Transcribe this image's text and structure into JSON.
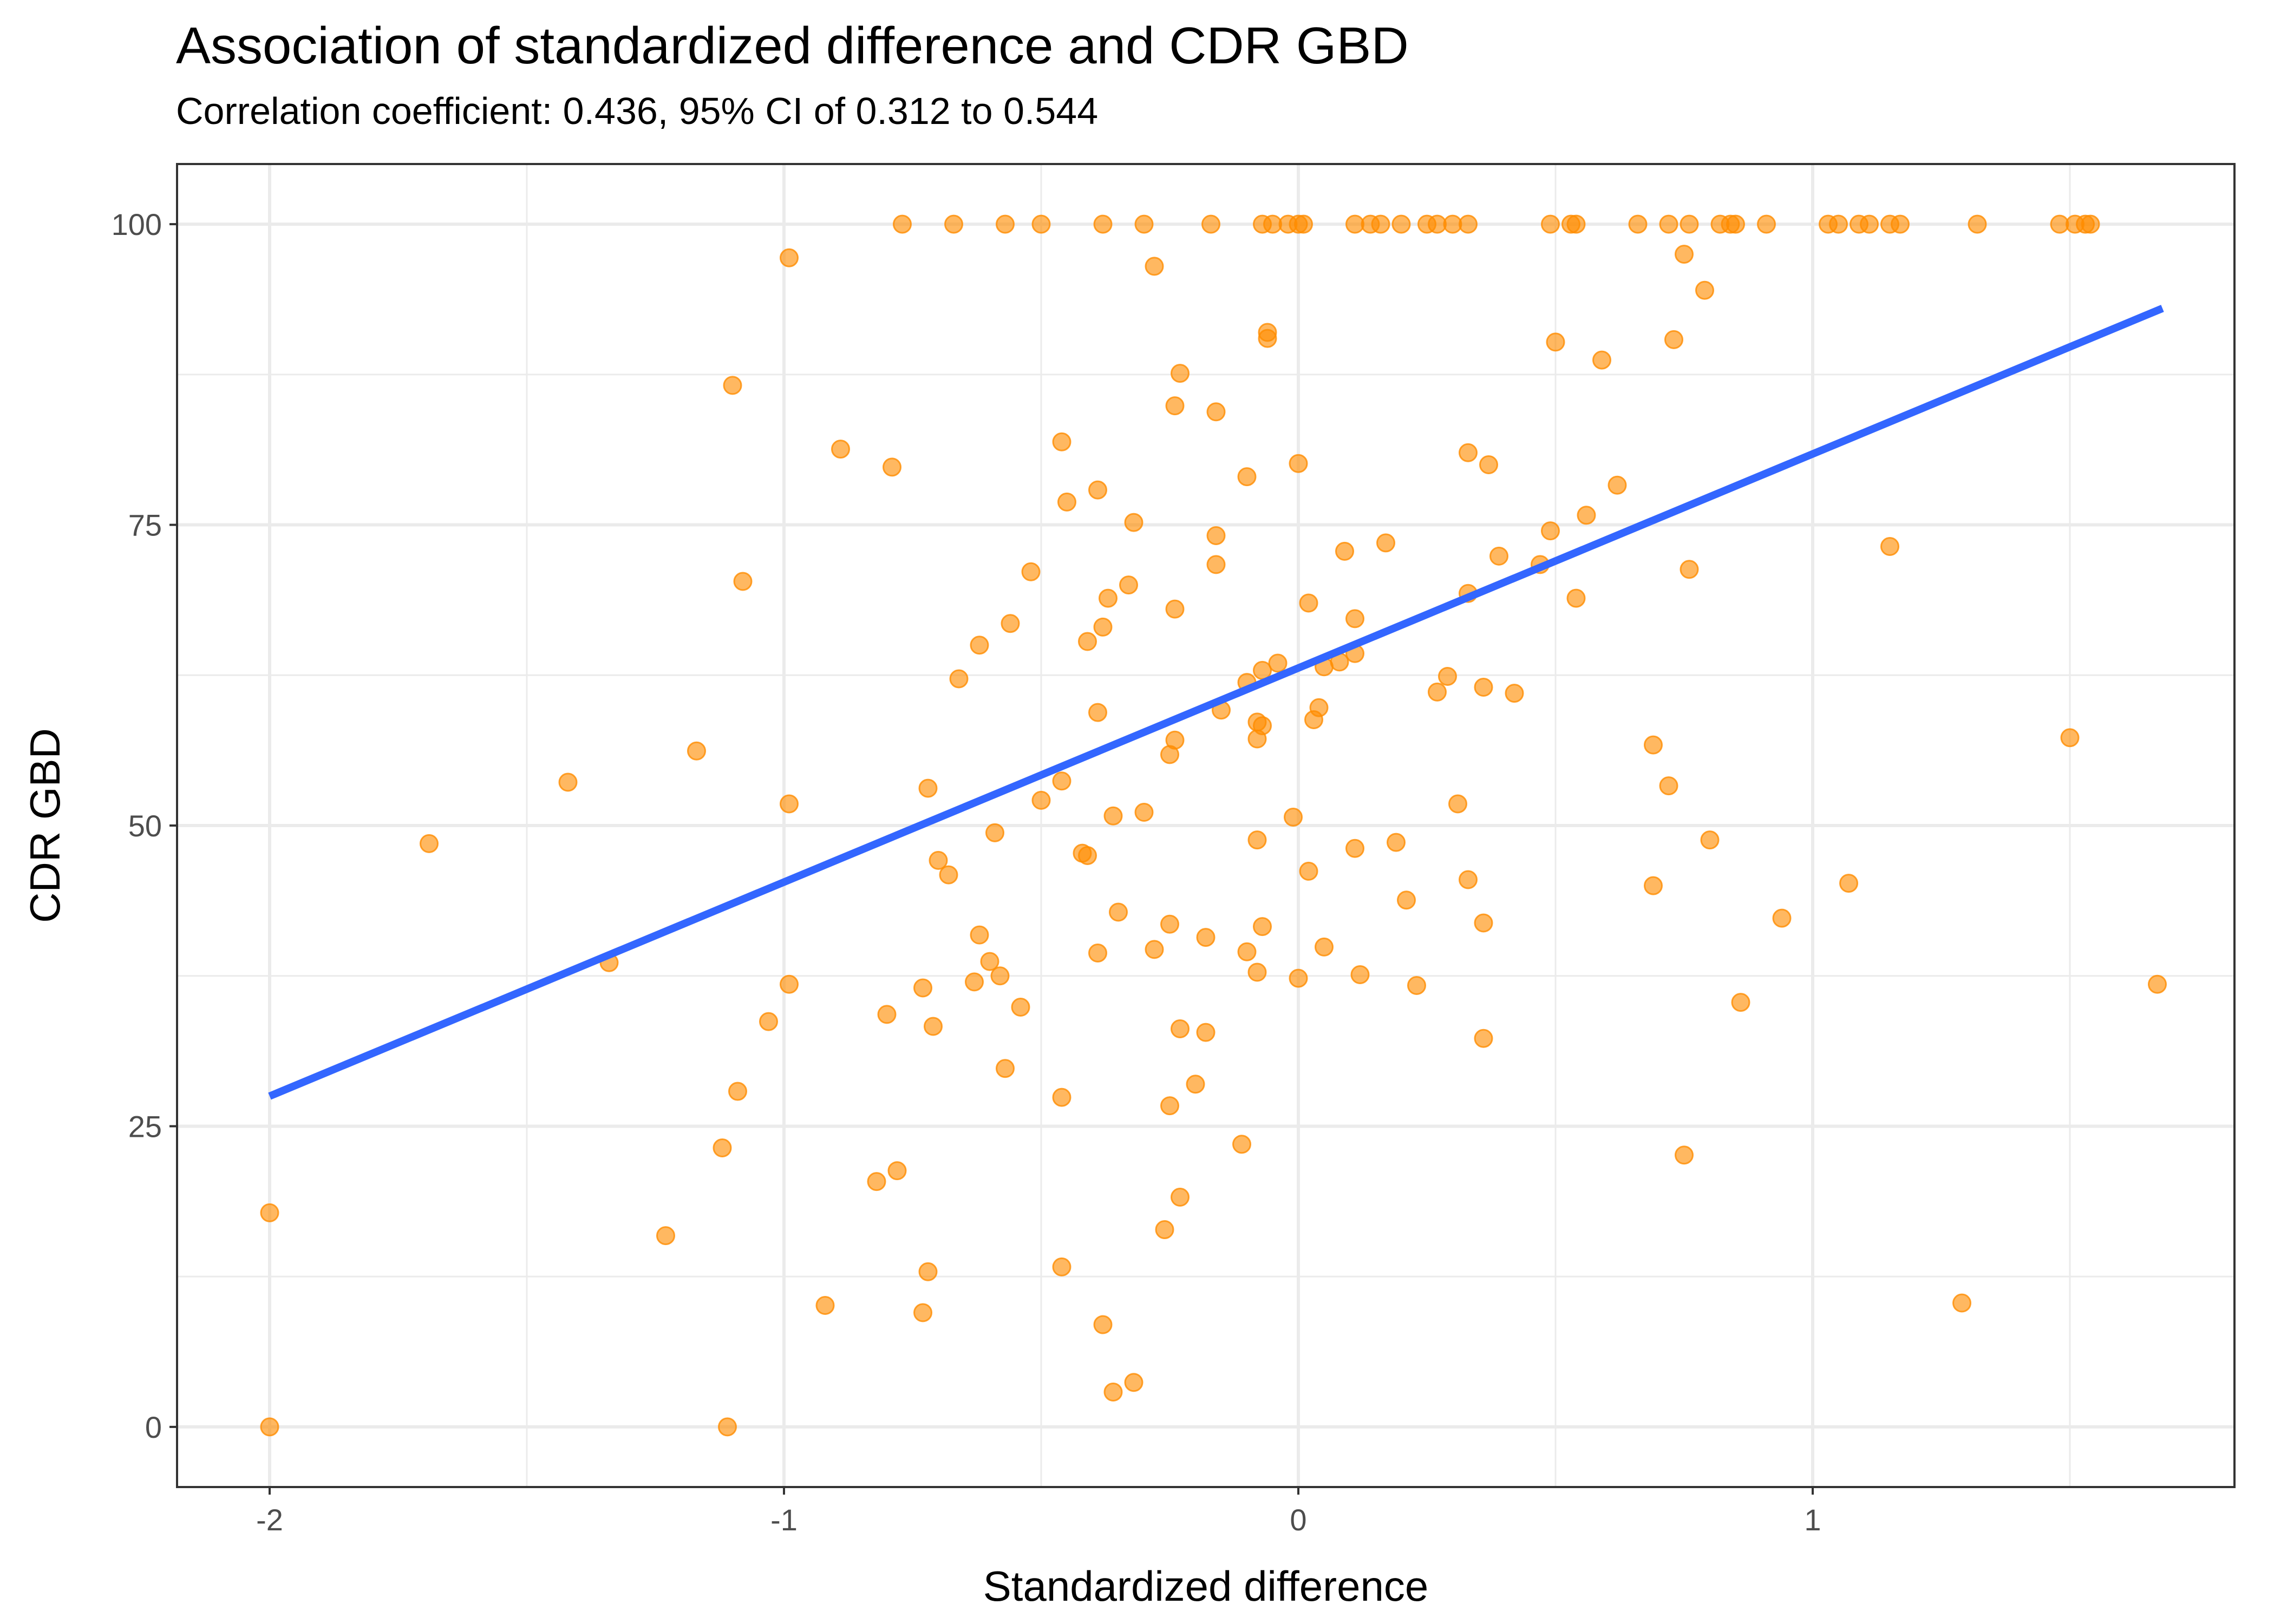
{
  "chart_data": {
    "type": "scatter",
    "title": "Association of standardized difference and CDR GBD",
    "subtitle": "Correlation coefficient: 0.436, 95% CI of 0.312 to 0.544",
    "xlabel": "Standardized difference",
    "ylabel": "CDR GBD",
    "xlim": [
      -2.18,
      1.82
    ],
    "ylim": [
      -5,
      105
    ],
    "x_ticks": [
      -2,
      -1,
      0,
      1
    ],
    "x_tick_labels": [
      "-2",
      "-1",
      "0",
      "1"
    ],
    "y_ticks": [
      0,
      25,
      50,
      75,
      100
    ],
    "y_tick_labels": [
      "0",
      "25",
      "50",
      "75",
      "100"
    ],
    "x_minor_ticks": [
      -1.5,
      -0.5,
      0.5,
      1.5
    ],
    "y_minor_ticks": [
      12.5,
      37.5,
      62.5,
      87.5
    ],
    "grid": true,
    "colors": {
      "points": "#FF8C00",
      "trend": "#3366FF",
      "grid": "#ebebeb",
      "border": "#333333"
    },
    "trend_line": {
      "x": [
        -2.0,
        1.68
      ],
      "y": [
        27.5,
        93.0
      ]
    },
    "points": [
      {
        "x": -0.77,
        "y": 100
      },
      {
        "x": -0.67,
        "y": 100
      },
      {
        "x": -0.57,
        "y": 100
      },
      {
        "x": -0.5,
        "y": 100
      },
      {
        "x": -0.38,
        "y": 100
      },
      {
        "x": -0.3,
        "y": 100
      },
      {
        "x": -0.17,
        "y": 100
      },
      {
        "x": -0.07,
        "y": 100
      },
      {
        "x": -0.05,
        "y": 100
      },
      {
        "x": -0.02,
        "y": 100
      },
      {
        "x": 0.0,
        "y": 100
      },
      {
        "x": 0.01,
        "y": 100
      },
      {
        "x": 0.11,
        "y": 100
      },
      {
        "x": 0.14,
        "y": 100
      },
      {
        "x": 0.16,
        "y": 100
      },
      {
        "x": 0.2,
        "y": 100
      },
      {
        "x": 0.25,
        "y": 100
      },
      {
        "x": 0.27,
        "y": 100
      },
      {
        "x": 0.3,
        "y": 100
      },
      {
        "x": 0.33,
        "y": 100
      },
      {
        "x": 0.49,
        "y": 100
      },
      {
        "x": 0.53,
        "y": 100
      },
      {
        "x": 0.54,
        "y": 100
      },
      {
        "x": 0.66,
        "y": 100
      },
      {
        "x": 0.72,
        "y": 100
      },
      {
        "x": 0.76,
        "y": 100
      },
      {
        "x": 0.82,
        "y": 100
      },
      {
        "x": 0.84,
        "y": 100
      },
      {
        "x": 0.85,
        "y": 100
      },
      {
        "x": 0.91,
        "y": 100
      },
      {
        "x": 1.03,
        "y": 100
      },
      {
        "x": 1.05,
        "y": 100
      },
      {
        "x": 1.09,
        "y": 100
      },
      {
        "x": 1.11,
        "y": 100
      },
      {
        "x": 1.15,
        "y": 100
      },
      {
        "x": 1.17,
        "y": 100
      },
      {
        "x": 1.32,
        "y": 100
      },
      {
        "x": 1.48,
        "y": 100
      },
      {
        "x": 1.51,
        "y": 100
      },
      {
        "x": 1.53,
        "y": 100
      },
      {
        "x": 1.54,
        "y": 100
      },
      {
        "x": -0.99,
        "y": 97.2
      },
      {
        "x": -0.28,
        "y": 96.5
      },
      {
        "x": 0.75,
        "y": 97.5
      },
      {
        "x": 0.79,
        "y": 94.5
      },
      {
        "x": -0.06,
        "y": 91.0
      },
      {
        "x": -0.06,
        "y": 90.5
      },
      {
        "x": 0.5,
        "y": 90.2
      },
      {
        "x": 0.73,
        "y": 90.4
      },
      {
        "x": 0.59,
        "y": 88.7
      },
      {
        "x": -0.23,
        "y": 87.6
      },
      {
        "x": -1.1,
        "y": 86.6
      },
      {
        "x": -0.24,
        "y": 84.9
      },
      {
        "x": -0.16,
        "y": 84.4
      },
      {
        "x": -0.46,
        "y": 81.9
      },
      {
        "x": -0.89,
        "y": 81.3
      },
      {
        "x": 0.33,
        "y": 81.0
      },
      {
        "x": -0.79,
        "y": 79.8
      },
      {
        "x": 0.0,
        "y": 80.1
      },
      {
        "x": 0.37,
        "y": 80.0
      },
      {
        "x": -0.1,
        "y": 79.0
      },
      {
        "x": 0.62,
        "y": 78.3
      },
      {
        "x": -0.39,
        "y": 77.9
      },
      {
        "x": -0.45,
        "y": 76.9
      },
      {
        "x": 0.56,
        "y": 75.8
      },
      {
        "x": -0.32,
        "y": 75.2
      },
      {
        "x": 0.49,
        "y": 74.5
      },
      {
        "x": -0.16,
        "y": 74.1
      },
      {
        "x": 0.17,
        "y": 73.5
      },
      {
        "x": 1.15,
        "y": 73.2
      },
      {
        "x": 0.09,
        "y": 72.8
      },
      {
        "x": 0.39,
        "y": 72.4
      },
      {
        "x": -0.16,
        "y": 71.7
      },
      {
        "x": 0.47,
        "y": 71.7
      },
      {
        "x": 0.76,
        "y": 71.3
      },
      {
        "x": -0.52,
        "y": 71.1
      },
      {
        "x": -1.08,
        "y": 70.3
      },
      {
        "x": -0.33,
        "y": 70.0
      },
      {
        "x": 0.33,
        "y": 69.3
      },
      {
        "x": 0.54,
        "y": 68.9
      },
      {
        "x": -0.37,
        "y": 68.9
      },
      {
        "x": 0.02,
        "y": 68.5
      },
      {
        "x": -0.24,
        "y": 68.0
      },
      {
        "x": 0.11,
        "y": 67.2
      },
      {
        "x": -0.56,
        "y": 66.8
      },
      {
        "x": -0.38,
        "y": 66.5
      },
      {
        "x": -0.41,
        "y": 65.3
      },
      {
        "x": -0.62,
        "y": 65.0
      },
      {
        "x": 0.11,
        "y": 64.3
      },
      {
        "x": 0.08,
        "y": 63.6
      },
      {
        "x": -0.04,
        "y": 63.5
      },
      {
        "x": -0.07,
        "y": 62.9
      },
      {
        "x": 0.05,
        "y": 63.2
      },
      {
        "x": 0.29,
        "y": 62.4
      },
      {
        "x": -0.66,
        "y": 62.2
      },
      {
        "x": -0.1,
        "y": 61.9
      },
      {
        "x": 0.36,
        "y": 61.5
      },
      {
        "x": 0.27,
        "y": 61.1
      },
      {
        "x": 0.42,
        "y": 61.0
      },
      {
        "x": 0.04,
        "y": 59.8
      },
      {
        "x": -0.15,
        "y": 59.6
      },
      {
        "x": -0.39,
        "y": 59.4
      },
      {
        "x": 0.03,
        "y": 58.8
      },
      {
        "x": -0.08,
        "y": 58.6
      },
      {
        "x": -0.07,
        "y": 58.3
      },
      {
        "x": 1.5,
        "y": 57.3
      },
      {
        "x": -0.08,
        "y": 57.2
      },
      {
        "x": -0.24,
        "y": 57.1
      },
      {
        "x": 0.69,
        "y": 56.7
      },
      {
        "x": -1.17,
        "y": 56.2
      },
      {
        "x": -0.25,
        "y": 55.9
      },
      {
        "x": -0.46,
        "y": 53.7
      },
      {
        "x": -1.42,
        "y": 53.6
      },
      {
        "x": 0.72,
        "y": 53.3
      },
      {
        "x": -0.72,
        "y": 53.1
      },
      {
        "x": -0.5,
        "y": 52.1
      },
      {
        "x": -0.99,
        "y": 51.8
      },
      {
        "x": 0.31,
        "y": 51.8
      },
      {
        "x": -0.3,
        "y": 51.1
      },
      {
        "x": -0.36,
        "y": 50.8
      },
      {
        "x": -0.01,
        "y": 50.7
      },
      {
        "x": -0.59,
        "y": 49.4
      },
      {
        "x": -0.08,
        "y": 48.8
      },
      {
        "x": 0.19,
        "y": 48.6
      },
      {
        "x": -1.69,
        "y": 48.5
      },
      {
        "x": 0.8,
        "y": 48.8
      },
      {
        "x": 0.11,
        "y": 48.1
      },
      {
        "x": -0.42,
        "y": 47.7
      },
      {
        "x": -0.41,
        "y": 47.5
      },
      {
        "x": -0.7,
        "y": 47.1
      },
      {
        "x": 0.02,
        "y": 46.2
      },
      {
        "x": -0.68,
        "y": 45.9
      },
      {
        "x": 0.33,
        "y": 45.5
      },
      {
        "x": 1.07,
        "y": 45.2
      },
      {
        "x": 0.69,
        "y": 45.0
      },
      {
        "x": 0.21,
        "y": 43.8
      },
      {
        "x": -0.35,
        "y": 42.8
      },
      {
        "x": 0.94,
        "y": 42.3
      },
      {
        "x": 0.36,
        "y": 41.9
      },
      {
        "x": -0.25,
        "y": 41.8
      },
      {
        "x": -0.07,
        "y": 41.6
      },
      {
        "x": -0.62,
        "y": 40.9
      },
      {
        "x": -0.18,
        "y": 40.7
      },
      {
        "x": 0.05,
        "y": 39.9
      },
      {
        "x": -0.28,
        "y": 39.7
      },
      {
        "x": -0.39,
        "y": 39.4
      },
      {
        "x": -0.1,
        "y": 39.5
      },
      {
        "x": -0.6,
        "y": 38.7
      },
      {
        "x": -1.34,
        "y": 38.6
      },
      {
        "x": -0.08,
        "y": 37.8
      },
      {
        "x": 0.12,
        "y": 37.6
      },
      {
        "x": -0.58,
        "y": 37.5
      },
      {
        "x": 0.0,
        "y": 37.3
      },
      {
        "x": -0.63,
        "y": 37.0
      },
      {
        "x": -0.99,
        "y": 36.8
      },
      {
        "x": 0.23,
        "y": 36.7
      },
      {
        "x": 1.67,
        "y": 36.8
      },
      {
        "x": -0.73,
        "y": 36.5
      },
      {
        "x": 0.86,
        "y": 35.3
      },
      {
        "x": -0.54,
        "y": 34.9
      },
      {
        "x": -0.8,
        "y": 34.3
      },
      {
        "x": -1.03,
        "y": 33.7
      },
      {
        "x": -0.71,
        "y": 33.3
      },
      {
        "x": -0.23,
        "y": 33.1
      },
      {
        "x": -0.18,
        "y": 32.8
      },
      {
        "x": 0.36,
        "y": 32.3
      },
      {
        "x": -0.57,
        "y": 29.8
      },
      {
        "x": -0.2,
        "y": 28.5
      },
      {
        "x": -1.09,
        "y": 27.9
      },
      {
        "x": -0.46,
        "y": 27.4
      },
      {
        "x": -0.25,
        "y": 26.7
      },
      {
        "x": -0.11,
        "y": 23.5
      },
      {
        "x": -1.12,
        "y": 23.2
      },
      {
        "x": 0.75,
        "y": 22.6
      },
      {
        "x": -0.78,
        "y": 21.3
      },
      {
        "x": -0.82,
        "y": 20.4
      },
      {
        "x": -0.23,
        "y": 19.1
      },
      {
        "x": -2.0,
        "y": 17.8
      },
      {
        "x": -0.26,
        "y": 16.4
      },
      {
        "x": -1.23,
        "y": 15.9
      },
      {
        "x": -0.46,
        "y": 13.3
      },
      {
        "x": -0.72,
        "y": 12.9
      },
      {
        "x": 1.29,
        "y": 10.3
      },
      {
        "x": -0.92,
        "y": 10.1
      },
      {
        "x": -0.73,
        "y": 9.5
      },
      {
        "x": -0.38,
        "y": 8.5
      },
      {
        "x": -0.32,
        "y": 3.7
      },
      {
        "x": -0.36,
        "y": 2.9
      },
      {
        "x": -2.0,
        "y": 0.0
      },
      {
        "x": -1.11,
        "y": 0.0
      }
    ]
  }
}
